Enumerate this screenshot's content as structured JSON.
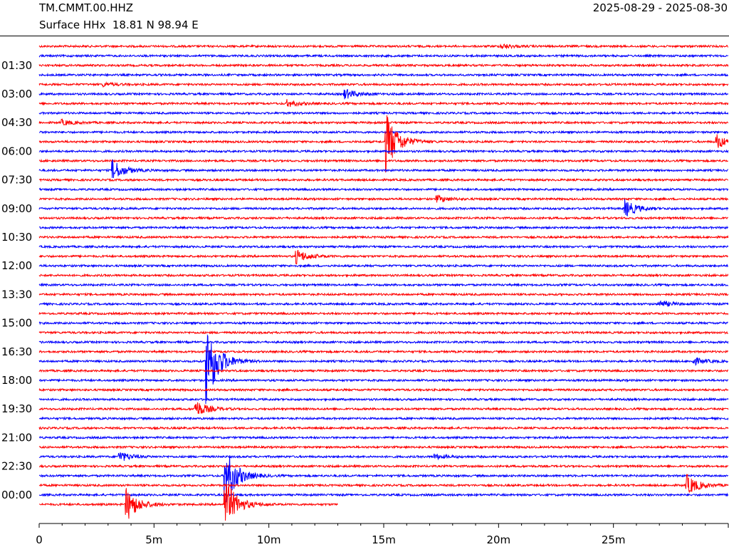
{
  "header": {
    "station": "TM.CMMT.00.HHZ",
    "info": "Surface HHx  18.81 N 98.94 E",
    "date_range": "2025-08-29 - 2025-08-30"
  },
  "colors": {
    "even_trace": "#ff0000",
    "odd_trace": "#0000ff",
    "axis": "#000000"
  },
  "chart_data": {
    "type": "line",
    "title": "",
    "xlabel": "",
    "ylabel": "",
    "x_ticks": [
      "0",
      "5m",
      "10m",
      "15m",
      "20m",
      "25m"
    ],
    "x_tick_values_minutes": [
      0,
      5,
      10,
      15,
      20,
      25
    ],
    "xlim_minutes": [
      0,
      30
    ],
    "y_ticks": [
      "01:30",
      "03:00",
      "04:30",
      "06:00",
      "07:30",
      "09:00",
      "10:30",
      "12:00",
      "13:30",
      "15:00",
      "16:30",
      "18:00",
      "19:30",
      "21:00",
      "22:30",
      "00:00"
    ],
    "trace_minutes": 30,
    "trace_count": 49,
    "last_trace_end_minute": 13,
    "series_colors": [
      "red",
      "blue"
    ],
    "events": [
      {
        "trace": 0,
        "minute": 20.1,
        "amplitude": 0.3
      },
      {
        "trace": 4,
        "minute": 2.8,
        "amplitude": 0.2
      },
      {
        "trace": 5,
        "minute": 13.3,
        "amplitude": 0.6
      },
      {
        "trace": 6,
        "minute": 10.8,
        "amplitude": 0.4
      },
      {
        "trace": 8,
        "minute": 1.0,
        "amplitude": 0.3
      },
      {
        "trace": 10,
        "minute": 15.1,
        "amplitude": 3.5
      },
      {
        "trace": 10,
        "minute": 29.5,
        "amplitude": 0.8
      },
      {
        "trace": 13,
        "minute": 3.2,
        "amplitude": 1.2
      },
      {
        "trace": 16,
        "minute": 17.3,
        "amplitude": 0.4
      },
      {
        "trace": 17,
        "minute": 25.5,
        "amplitude": 1.0
      },
      {
        "trace": 22,
        "minute": 11.2,
        "amplitude": 0.8
      },
      {
        "trace": 27,
        "minute": 27.0,
        "amplitude": 0.4
      },
      {
        "trace": 33,
        "minute": 7.3,
        "amplitude": 5.0
      },
      {
        "trace": 33,
        "minute": 28.5,
        "amplitude": 0.4
      },
      {
        "trace": 38,
        "minute": 6.8,
        "amplitude": 1.0
      },
      {
        "trace": 43,
        "minute": 3.5,
        "amplitude": 0.6
      },
      {
        "trace": 43,
        "minute": 17.2,
        "amplitude": 0.3
      },
      {
        "trace": 45,
        "minute": 8.1,
        "amplitude": 3.5
      },
      {
        "trace": 46,
        "minute": 28.2,
        "amplitude": 1.2
      },
      {
        "trace": 48,
        "minute": 3.8,
        "amplitude": 2.0
      },
      {
        "trace": 48,
        "minute": 8.1,
        "amplitude": 3.0
      }
    ]
  }
}
